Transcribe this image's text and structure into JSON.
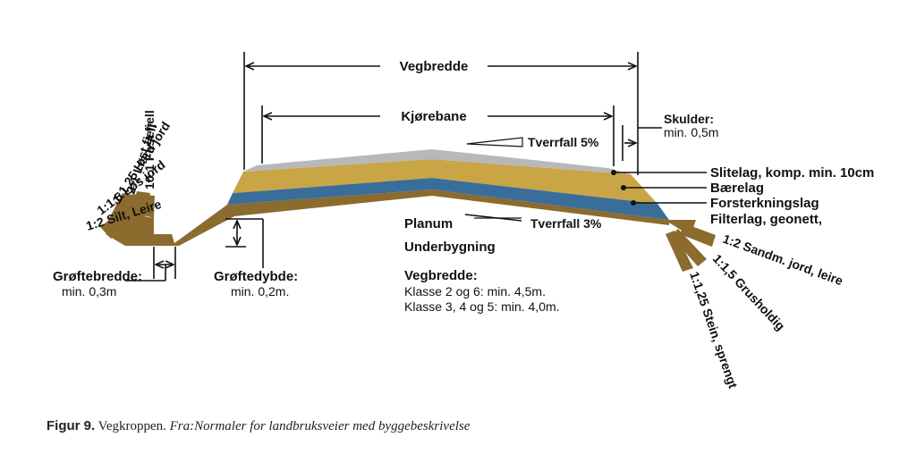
{
  "colors": {
    "brown": "#8b6b2e",
    "gold": "#c9a545",
    "blue": "#3a6e9a",
    "gray": "#b7b8ba",
    "text": "#111111"
  },
  "labels": {
    "vegbredde": "Vegbredde",
    "kjorebane": "Kjørebane",
    "skulder_title": "Skulder:",
    "skulder_min": "min. 0,5m",
    "tverrfall_top": "Tverrfall 5%",
    "tverrfall_bottom": "Tverrfall 3%",
    "slitelag": "Slitelag, komp. min. 10cm",
    "baerelag": "Bærelag",
    "forsterkningslag": "Forsterkningslag",
    "filterlag": "Filterlag, geonett,",
    "planum": "Planum",
    "underbygning": "Underbygning",
    "groftebredde_title": "Grøftebredde:",
    "groftebredde_min": "min. 0,3m",
    "groftedybde_title": "Grøftedybde:",
    "groftedybde_min": "min. 0,2m.",
    "vegbredde_title": "Vegbredde:",
    "vegbredde_klasse1": "Klasse 2 og 6: min. 4,5m.",
    "vegbredde_klasse2": "Klasse 3, 4 og 5: min. 4,0m."
  },
  "left_slopes": [
    "10:1 Fast fjell",
    "2:1 Løst fjell",
    "1:1,25 Hard jord",
    "1:1,5 Løs jord",
    "1:2 Silt, Leire"
  ],
  "right_slopes": [
    "1:2 Sandm. jord, leire",
    "1:1,5 Grusholdig",
    "1:1,25 Stein, sprengt"
  ],
  "caption": {
    "figure": "Figur 9.",
    "title": "Vegkroppen.",
    "source": "Fra:Normaler for landbruksveier med byggebeskrivelse"
  }
}
